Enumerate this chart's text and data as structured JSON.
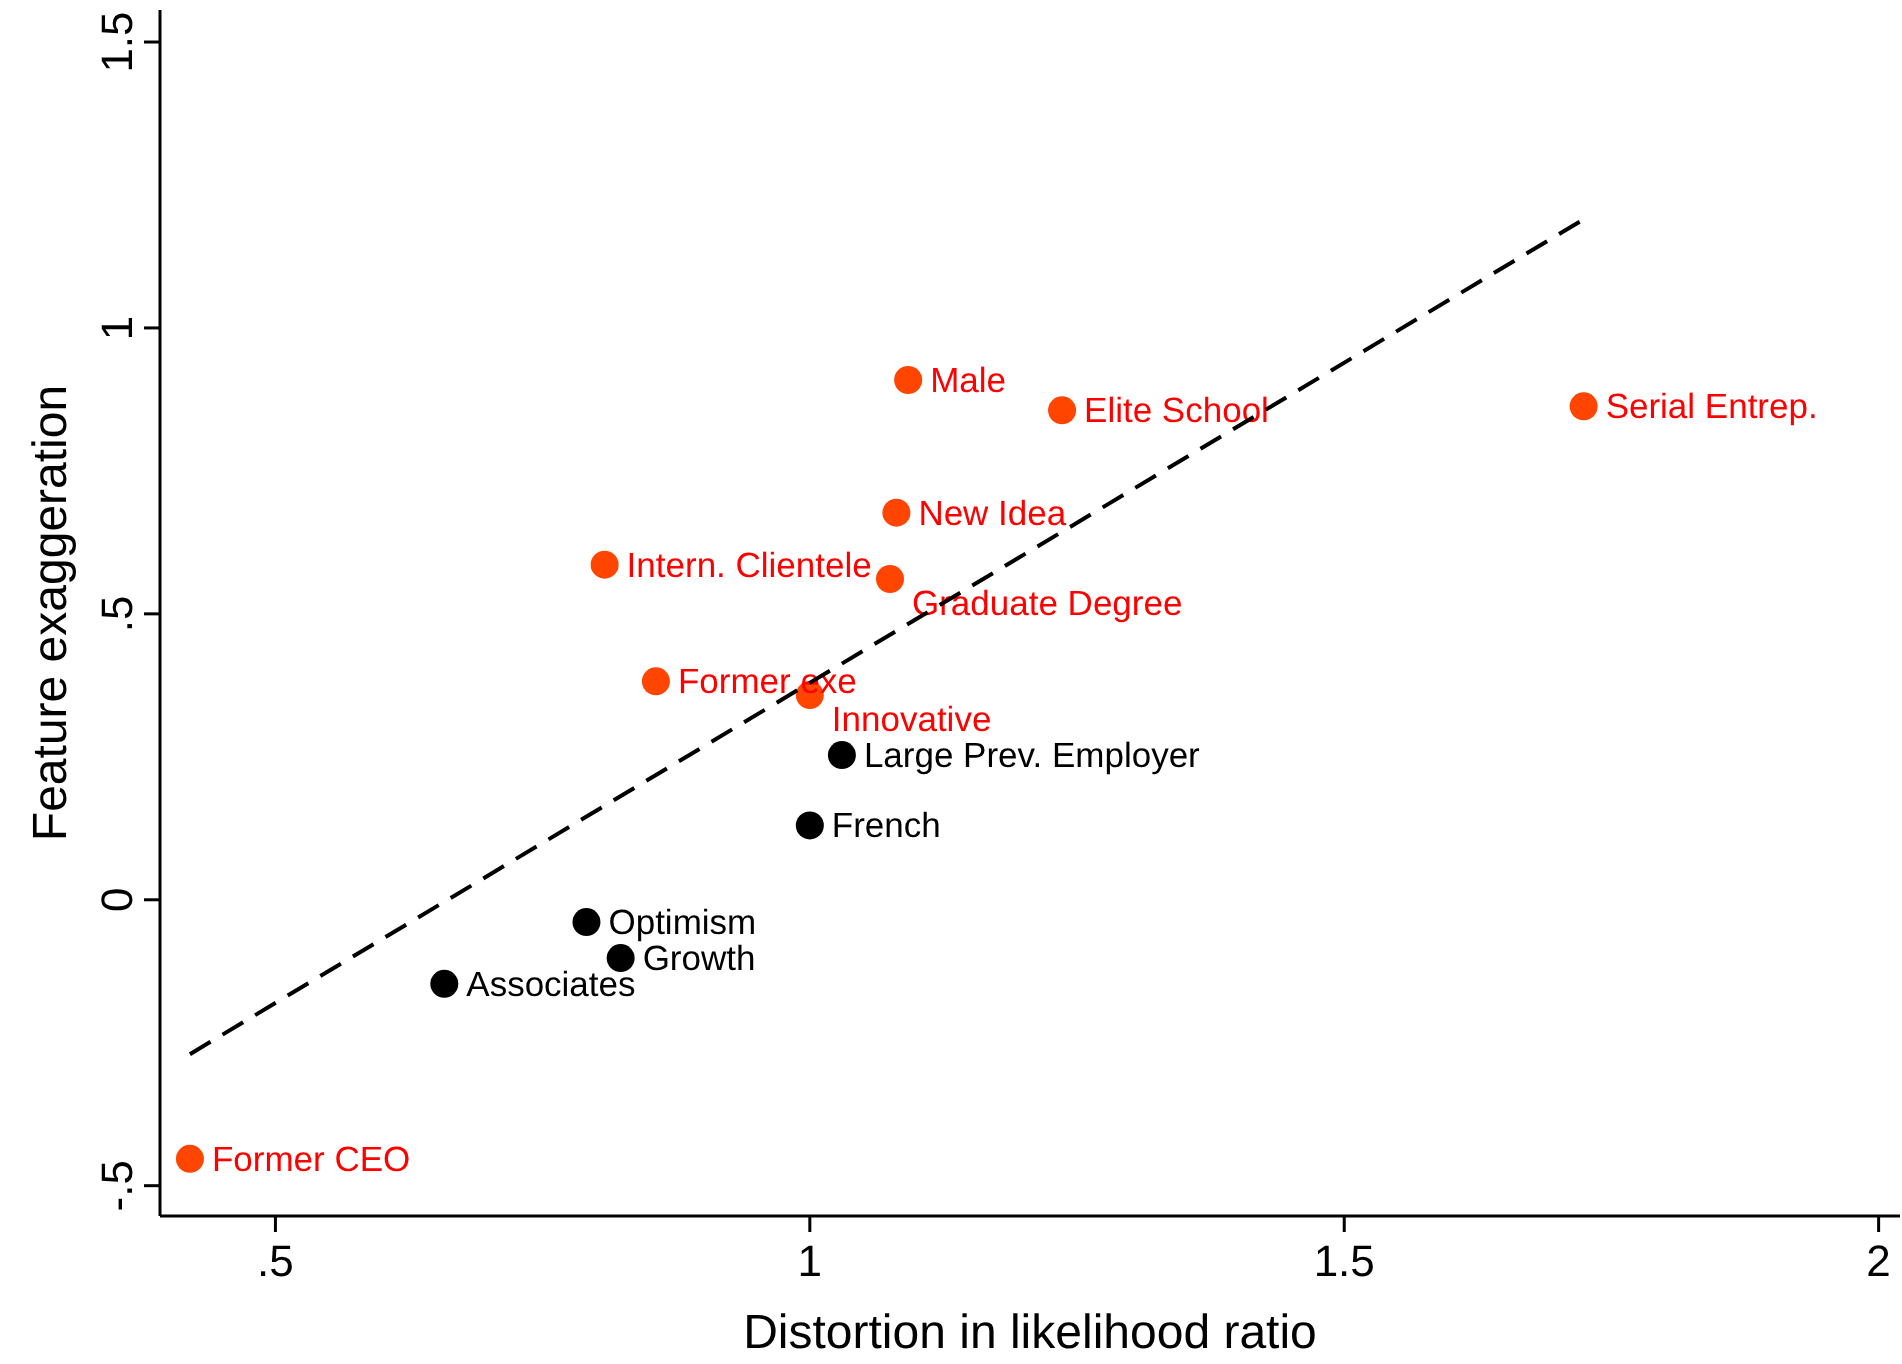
{
  "chart_data": {
    "type": "scatter",
    "xlabel": "Distortion in likelihood ratio",
    "ylabel": "Feature exaggeration",
    "xlim": [
      0.392,
      2.02
    ],
    "ylim": [
      -0.553,
      1.556
    ],
    "xticks": [
      {
        "value": 0.5,
        "label": ".5"
      },
      1,
      1.5,
      2
    ],
    "yticks": [
      {
        "value": -0.5,
        "label": "-.5"
      },
      0,
      {
        "value": 0.5,
        "label": ".5"
      },
      1,
      1.5
    ],
    "grid": false,
    "marker": "circle",
    "series": [
      {
        "color": "#ff4500",
        "x": [
          0.42,
          0.856,
          0.808,
          1.0,
          1.075,
          1.081,
          1.092,
          1.236,
          1.724
        ],
        "values": [
          -0.453,
          0.382,
          0.586,
          0.358,
          0.561,
          0.677,
          0.909,
          0.856,
          0.863
        ],
        "value_labels": [
          "Former CEO",
          "Former exe",
          "Intern. Clientele",
          "Innovative",
          "Graduate Degree",
          "New Idea",
          "Male",
          "Elite School",
          "Serial Entrep."
        ]
      },
      {
        "color": "#000000",
        "x": [
          0.658,
          0.791,
          0.823,
          1.0,
          1.03
        ],
        "values": [
          -0.147,
          -0.039,
          -0.102,
          0.13,
          0.253
        ],
        "value_labels": [
          "Associates",
          "Optimism",
          "Growth",
          "French",
          "Large Prev. Employer"
        ]
      },
      {
        "type": "line",
        "color": "#000000",
        "line_style": "dashed",
        "marker": "none",
        "x": [
          0.42,
          1.724
        ],
        "values": [
          -0.27,
          1.19
        ]
      }
    ]
  }
}
